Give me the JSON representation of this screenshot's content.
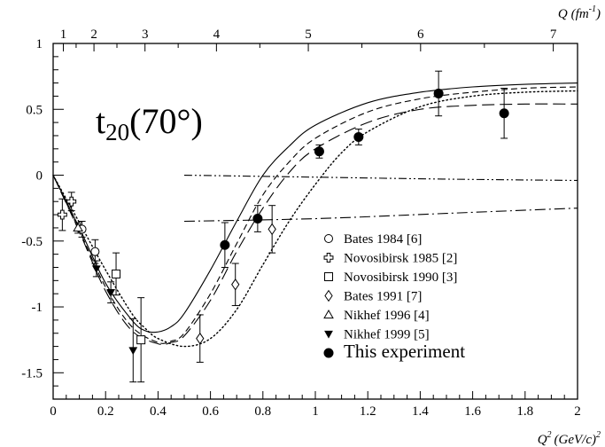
{
  "chart_data": {
    "type": "scatter",
    "panel_label": "t",
    "panel_label_sub": "20",
    "panel_label_suffix": "(70°)",
    "xlabel_main": "Q",
    "xlabel_main_sup": "2",
    "xlabel_main_unit": "(GeV/c)",
    "xlabel_main_unit_sup": "2",
    "xlabel_top": "Q",
    "xlabel_top_unit": "(fm",
    "xlabel_top_unit_sup": "-1",
    "xlabel_top_unit_close": ")",
    "xlim": [
      0,
      2
    ],
    "ylim": [
      -1.7,
      1.0
    ],
    "x_ticks": [
      {
        "value": 0,
        "label": "0"
      },
      {
        "value": 0.2,
        "label": "0.2"
      },
      {
        "value": 0.4,
        "label": "0.4"
      },
      {
        "value": 0.6,
        "label": "0.6"
      },
      {
        "value": 0.8,
        "label": "0.8"
      },
      {
        "value": 1.0,
        "label": "1"
      },
      {
        "value": 1.2,
        "label": "1.2"
      },
      {
        "value": 1.4,
        "label": "1.4"
      },
      {
        "value": 1.6,
        "label": "1.6"
      },
      {
        "value": 1.8,
        "label": "1.8"
      },
      {
        "value": 2.0,
        "label": "2"
      }
    ],
    "y_ticks": [
      {
        "value": 1,
        "label": "1"
      },
      {
        "value": 0.5,
        "label": "0.5"
      },
      {
        "value": 0,
        "label": "0"
      },
      {
        "value": -0.5,
        "label": "-0.5"
      },
      {
        "value": -1,
        "label": "-1"
      },
      {
        "value": -1.5,
        "label": "-1.5"
      }
    ],
    "top_ticks": [
      {
        "value": 1,
        "label": "1"
      },
      {
        "value": 2,
        "label": "2"
      },
      {
        "value": 3,
        "label": "3"
      },
      {
        "value": 4,
        "label": "4"
      },
      {
        "value": 5,
        "label": "5"
      },
      {
        "value": 6,
        "label": "6"
      },
      {
        "value": 7,
        "label": "7"
      }
    ],
    "top_axis_relation": "Q2 = (Q_fm x 0.1973)^2",
    "series": [
      {
        "name": "Bates 1984 [6]",
        "marker": "circle-open",
        "points": [
          {
            "x": 0.11,
            "y": -0.41,
            "err": 0.06
          },
          {
            "x": 0.16,
            "y": -0.58,
            "err": 0.09
          }
        ]
      },
      {
        "name": "Novosibirsk 1985 [2]",
        "marker": "cross-open",
        "points": [
          {
            "x": 0.035,
            "y": -0.3,
            "err": 0.12
          },
          {
            "x": 0.07,
            "y": -0.2,
            "err": 0.07
          }
        ]
      },
      {
        "name": "Novosibirsk 1990 [3]",
        "marker": "square-open",
        "points": [
          {
            "x": 0.24,
            "y": -0.75,
            "err": 0.16
          },
          {
            "x": 0.335,
            "y": -1.25,
            "err": 0.32
          }
        ]
      },
      {
        "name": "Bates 1991 [7]",
        "marker": "diamond-open",
        "points": [
          {
            "x": 0.56,
            "y": -1.24,
            "err": 0.18
          },
          {
            "x": 0.695,
            "y": -0.83,
            "err": 0.16
          },
          {
            "x": 0.835,
            "y": -0.41,
            "err": 0.18
          }
        ]
      },
      {
        "name": "Nikhef 1996 [4]",
        "marker": "triangle-open",
        "points": [
          {
            "x": 0.095,
            "y": -0.4,
            "err": 0.04
          }
        ]
      },
      {
        "name": "Nikhef 1999 [5]",
        "marker": "triangle-down-filled",
        "points": [
          {
            "x": 0.165,
            "y": -0.71,
            "err": 0.06
          },
          {
            "x": 0.22,
            "y": -0.89,
            "err": 0.08
          },
          {
            "x": 0.305,
            "y": -1.33,
            "err": 0.24
          }
        ]
      },
      {
        "name": "This experiment",
        "marker": "circle-filled",
        "points": [
          {
            "x": 0.655,
            "y": -0.53,
            "err": 0.17
          },
          {
            "x": 0.78,
            "y": -0.33,
            "err": 0.1
          },
          {
            "x": 1.015,
            "y": 0.18,
            "err": 0.05
          },
          {
            "x": 1.165,
            "y": 0.29,
            "err": 0.06
          },
          {
            "x": 1.47,
            "y": 0.62,
            "err": 0.17
          },
          {
            "x": 1.72,
            "y": 0.47,
            "err": 0.19
          }
        ]
      }
    ],
    "curves": [
      {
        "style": "solid",
        "points": [
          [
            0,
            0
          ],
          [
            0.1,
            -0.4
          ],
          [
            0.2,
            -0.82
          ],
          [
            0.3,
            -1.1
          ],
          [
            0.35,
            -1.18
          ],
          [
            0.4,
            -1.19
          ],
          [
            0.45,
            -1.15
          ],
          [
            0.5,
            -1.05
          ],
          [
            0.6,
            -0.72
          ],
          [
            0.7,
            -0.35
          ],
          [
            0.8,
            0.0
          ],
          [
            0.9,
            0.22
          ],
          [
            1.0,
            0.38
          ],
          [
            1.2,
            0.55
          ],
          [
            1.4,
            0.63
          ],
          [
            1.6,
            0.67
          ],
          [
            1.8,
            0.69
          ],
          [
            2.0,
            0.7
          ]
        ]
      },
      {
        "style": "dashed",
        "points": [
          [
            0,
            0
          ],
          [
            0.1,
            -0.42
          ],
          [
            0.2,
            -0.85
          ],
          [
            0.3,
            -1.15
          ],
          [
            0.4,
            -1.27
          ],
          [
            0.45,
            -1.26
          ],
          [
            0.5,
            -1.2
          ],
          [
            0.6,
            -0.9
          ],
          [
            0.7,
            -0.52
          ],
          [
            0.8,
            -0.15
          ],
          [
            0.9,
            0.1
          ],
          [
            1.0,
            0.28
          ],
          [
            1.2,
            0.48
          ],
          [
            1.4,
            0.58
          ],
          [
            1.6,
            0.63
          ],
          [
            1.8,
            0.66
          ],
          [
            2.0,
            0.67
          ]
        ]
      },
      {
        "style": "long-dash",
        "points": [
          [
            0,
            0
          ],
          [
            0.1,
            -0.43
          ],
          [
            0.2,
            -0.88
          ],
          [
            0.3,
            -1.18
          ],
          [
            0.4,
            -1.28
          ],
          [
            0.45,
            -1.27
          ],
          [
            0.5,
            -1.22
          ],
          [
            0.6,
            -0.95
          ],
          [
            0.7,
            -0.58
          ],
          [
            0.8,
            -0.25
          ],
          [
            0.9,
            0.02
          ],
          [
            1.0,
            0.2
          ],
          [
            1.2,
            0.4
          ],
          [
            1.4,
            0.5
          ],
          [
            1.6,
            0.53
          ],
          [
            1.8,
            0.54
          ],
          [
            2.0,
            0.54
          ]
        ]
      },
      {
        "style": "dotted",
        "points": [
          [
            0,
            0
          ],
          [
            0.1,
            -0.36
          ],
          [
            0.2,
            -0.72
          ],
          [
            0.3,
            -1.05
          ],
          [
            0.35,
            -1.16
          ],
          [
            0.4,
            -1.24
          ],
          [
            0.5,
            -1.3
          ],
          [
            0.6,
            -1.24
          ],
          [
            0.7,
            -1.02
          ],
          [
            0.8,
            -0.68
          ],
          [
            0.9,
            -0.35
          ],
          [
            1.0,
            -0.07
          ],
          [
            1.1,
            0.17
          ],
          [
            1.2,
            0.33
          ],
          [
            1.4,
            0.52
          ],
          [
            1.6,
            0.6
          ],
          [
            1.8,
            0.63
          ],
          [
            2.0,
            0.64
          ]
        ]
      },
      {
        "style": "dash-dot-dot",
        "points": [
          [
            0.5,
            0.0
          ],
          [
            1.0,
            -0.015
          ],
          [
            1.5,
            -0.03
          ],
          [
            2.0,
            -0.04
          ]
        ]
      },
      {
        "style": "dash-dot",
        "points": [
          [
            0.5,
            -0.35
          ],
          [
            1.0,
            -0.33
          ],
          [
            1.5,
            -0.29
          ],
          [
            2.0,
            -0.25
          ]
        ]
      }
    ]
  }
}
